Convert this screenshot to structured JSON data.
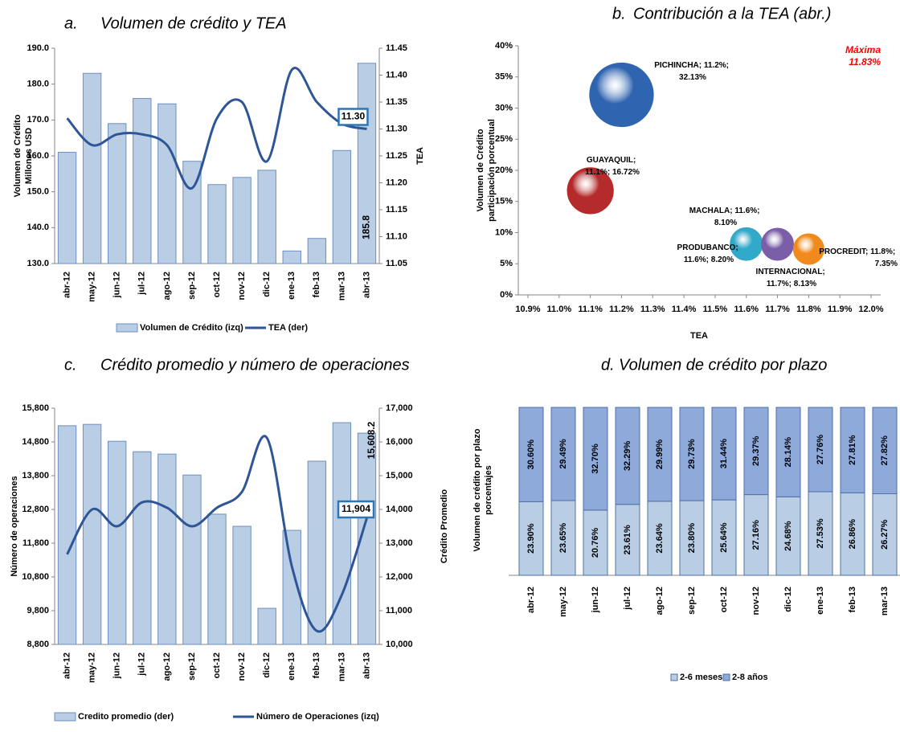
{
  "chart_data": [
    {
      "type": "bar_line",
      "label": "a.",
      "title": "Volumen de crédito y TEA",
      "categories": [
        "abr-12",
        "may-12",
        "jun-12",
        "jul-12",
        "ago-12",
        "sep-12",
        "oct-12",
        "nov-12",
        "dic-12",
        "ene-13",
        "feb-13",
        "mar-13",
        "abr-13"
      ],
      "series": [
        {
          "name": "Volumen de Crédito (izq)",
          "type": "bar",
          "axis": "y",
          "color": "#b9cde5",
          "values": [
            161,
            183,
            169,
            176,
            174.5,
            158.5,
            152,
            154,
            156,
            133.5,
            137,
            161.5,
            185.8
          ],
          "value_labels": [
            null,
            null,
            null,
            null,
            null,
            null,
            null,
            null,
            null,
            null,
            null,
            null,
            "185.8"
          ]
        },
        {
          "name": "TEA (der)",
          "type": "line",
          "axis": "y2",
          "color": "#2e5596",
          "values": [
            11.32,
            11.27,
            11.29,
            11.29,
            11.27,
            11.19,
            11.32,
            11.35,
            11.24,
            11.41,
            11.35,
            11.31,
            11.3
          ],
          "value_labels": [
            null,
            null,
            null,
            null,
            null,
            null,
            null,
            null,
            null,
            null,
            null,
            null,
            "11.30"
          ]
        }
      ],
      "ylim": [
        130,
        190
      ],
      "yticks": [
        {
          "value": 130,
          "label": "130.0"
        },
        {
          "value": 140,
          "label": "140.0"
        },
        {
          "value": 150,
          "label": "150.0"
        },
        {
          "value": 160,
          "label": "160.0"
        },
        {
          "value": 170,
          "label": "170.0"
        },
        {
          "value": 180,
          "label": "180.0"
        },
        {
          "value": 190,
          "label": "190.0"
        }
      ],
      "y2lim": [
        11.05,
        11.45
      ],
      "y2ticks": [
        11.05,
        {
          "value": 11.1,
          "label": "11.10"
        },
        11.15,
        {
          "value": 11.2,
          "label": "11.20"
        },
        11.25,
        {
          "value": 11.3,
          "label": "11.30"
        },
        11.35,
        {
          "value": 11.4,
          "label": "11.40"
        },
        11.45
      ],
      "ylabel": [
        "Volumen de Crédito",
        "Millones USD"
      ],
      "y2label": "TEA"
    },
    {
      "type": "bubble",
      "label": "b.",
      "title": "Contribución a la TEA (abr.)",
      "points": [
        {
          "name": "PICHINCHA",
          "x": 11.2,
          "y": 32.13,
          "color": "#2f64b0",
          "label": "PICHINCHA; 11.2%; 32.13%"
        },
        {
          "name": "GUAYAQUIL",
          "x": 11.1,
          "y": 16.72,
          "color": "#b52a2a",
          "label": "GUAYAQUIL; 11.1%; 16.72%"
        },
        {
          "name": "PRODUBANCO",
          "x": 11.6,
          "y": 8.2,
          "color": "#3d9fc0",
          "label": "PRODUBANCO; 11.6%; 8.20%"
        },
        {
          "name": "MACHALA",
          "x": 11.6,
          "y": 8.1,
          "color": "#31a9c8",
          "label": "MACHALA; 11.6%; 8.10%"
        },
        {
          "name": "INTERNACIONAL",
          "x": 11.7,
          "y": 8.13,
          "color": "#7b5ea8",
          "label": "INTERNACIONAL; 11.7%; 8.13%"
        },
        {
          "name": "PROCREDIT",
          "x": 11.8,
          "y": 7.35,
          "color": "#f08a1c",
          "label": "PROCREDIT; 11.8%; 7.35%"
        }
      ],
      "xlim": [
        10.9,
        12.0
      ],
      "xticks": [
        {
          "value": 10.9,
          "label": "10.9%"
        },
        {
          "value": 11.0,
          "label": "11.0%"
        },
        {
          "value": 11.1,
          "label": "11.1%"
        },
        {
          "value": 11.2,
          "label": "11.2%"
        },
        {
          "value": 11.3,
          "label": "11.3%"
        },
        {
          "value": 11.4,
          "label": "11.4%"
        },
        {
          "value": 11.5,
          "label": "11.5%"
        },
        {
          "value": 11.6,
          "label": "11.6%"
        },
        {
          "value": 11.7,
          "label": "11.7%"
        },
        {
          "value": 11.8,
          "label": "11.8%"
        },
        {
          "value": 11.9,
          "label": "11.9%"
        },
        {
          "value": 12.0,
          "label": "12.0%"
        }
      ],
      "ylim": [
        0,
        40
      ],
      "yticks": [
        {
          "value": 0,
          "label": "0%"
        },
        {
          "value": 5,
          "label": "5%"
        },
        {
          "value": 10,
          "label": "10%"
        },
        {
          "value": 15,
          "label": "15%"
        },
        {
          "value": 20,
          "label": "20%"
        },
        {
          "value": 25,
          "label": "25%"
        },
        {
          "value": 30,
          "label": "30%"
        },
        {
          "value": 35,
          "label": "35%"
        },
        {
          "value": 40,
          "label": "40%"
        }
      ],
      "xlabel": "TEA",
      "ylabel": [
        "Volumen de Crédito",
        "participación porcentual"
      ],
      "annotations": [
        "Máxima",
        "11.83%"
      ]
    },
    {
      "type": "bar_line",
      "label": "c.",
      "title": "Crédito promedio y número de operaciones",
      "categories": [
        "abr-12",
        "may-12",
        "jun-12",
        "jul-12",
        "ago-12",
        "sep-12",
        "oct-12",
        "nov-12",
        "dic-12",
        "ene-13",
        "feb-13",
        "mar-13",
        "abr-13"
      ],
      "series": [
        {
          "name": "Credito promedio (der)",
          "type": "bar",
          "axis": "y2",
          "color": "#b9cde5",
          "values": [
            16480,
            16520,
            16020,
            15710,
            15640,
            15020,
            13860,
            13500,
            11070,
            13380,
            15430,
            16570,
            16260
          ]
        },
        {
          "name": "Número de Operaciones  (izq)",
          "type": "line",
          "axis": "y",
          "color": "#2e5596",
          "values": [
            11470,
            12800,
            12300,
            13010,
            12850,
            12300,
            12850,
            13320,
            14920,
            11110,
            9200,
            10270,
            12540
          ]
        }
      ],
      "ylim": [
        8800,
        15800
      ],
      "yticks": [
        {
          "value": 8800,
          "label": "8,800"
        },
        {
          "value": 9800,
          "label": "9,800"
        },
        {
          "value": 10800,
          "label": "10,800"
        },
        {
          "value": 11800,
          "label": "11,800"
        },
        {
          "value": 12800,
          "label": "12,800"
        },
        {
          "value": 13800,
          "label": "13,800"
        },
        {
          "value": 14800,
          "label": "14,800"
        },
        {
          "value": 15800,
          "label": "15,800"
        }
      ],
      "y2lim": [
        10000,
        17000
      ],
      "y2ticks": [
        {
          "value": 10000,
          "label": "10,000"
        },
        {
          "value": 11000,
          "label": "11,000"
        },
        {
          "value": 12000,
          "label": "12,000"
        },
        {
          "value": 13000,
          "label": "13,000"
        },
        {
          "value": 14000,
          "label": "14,000"
        },
        {
          "value": 15000,
          "label": "15,000"
        },
        {
          "value": 16000,
          "label": "16,000"
        },
        {
          "value": 17000,
          "label": "17,000"
        }
      ],
      "ylabel": [
        "Número de operaciones"
      ],
      "y2label": "Crédito Promedio",
      "annotations": [
        "11,904",
        "15,608.2"
      ]
    },
    {
      "type": "stacked_bar_100",
      "label": "d.",
      "title": "Volumen de crédito por plazo",
      "categories": [
        "abr-12",
        "may-12",
        "jun-12",
        "jul-12",
        "ago-12",
        "sep-12",
        "oct-12",
        "nov-12",
        "dic-12",
        "ene-13",
        "feb-13",
        "mar-13"
      ],
      "series": [
        {
          "name": "2-6 meses",
          "color": "#b9cde5",
          "values": [
            23.9,
            23.65,
            20.76,
            23.61,
            23.64,
            23.8,
            25.64,
            27.16,
            24.68,
            27.53,
            26.86,
            26.27
          ],
          "value_labels": [
            "23.90%",
            "23.65%",
            "20.76%",
            "23.61%",
            "23.64%",
            "23.80%",
            "25.64%",
            "27.16%",
            "24.68%",
            "27.53%",
            "26.86%",
            "26.27%"
          ]
        },
        {
          "name": "2-8 años",
          "color": "#8eaadb",
          "values": [
            30.6,
            29.49,
            32.7,
            32.29,
            29.99,
            29.73,
            31.44,
            29.37,
            28.14,
            27.76,
            27.81,
            27.82
          ],
          "value_labels": [
            "30.60%",
            "29.49%",
            "32.70%",
            "32.29%",
            "29.99%",
            "29.73%",
            "31.44%",
            "29.37%",
            "28.14%",
            "27.76%",
            "27.81%",
            "27.82%"
          ]
        }
      ],
      "ylabel": [
        "Volumen de crédito por plazo",
        "porcentajes"
      ]
    }
  ]
}
